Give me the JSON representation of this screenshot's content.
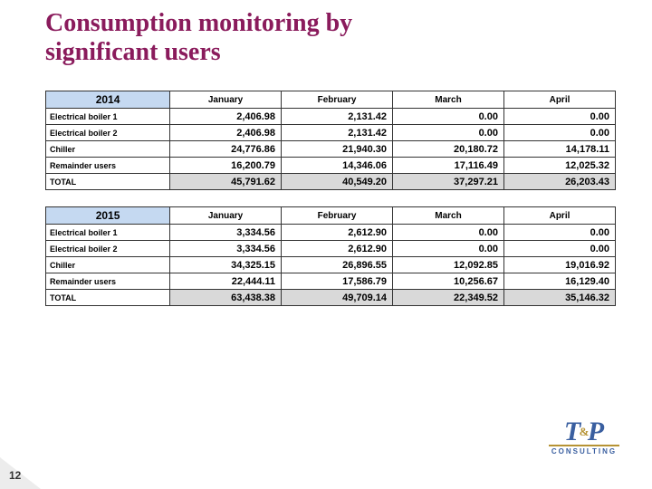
{
  "title_line1": "Consumption monitoring by",
  "title_line2": "significant users",
  "page_number": "12",
  "logo": {
    "letters": "T P",
    "amp": "&",
    "sub": "CONSULTING"
  },
  "tables": [
    {
      "year": "2014",
      "months": [
        "January",
        "February",
        "March",
        "April"
      ],
      "rows": [
        {
          "label": "Electrical boiler 1",
          "vals": [
            "2,406.98",
            "2,131.42",
            "0.00",
            "0.00"
          ]
        },
        {
          "label": "Electrical boiler 2",
          "vals": [
            "2,406.98",
            "2,131.42",
            "0.00",
            "0.00"
          ]
        },
        {
          "label": "Chiller",
          "vals": [
            "24,776.86",
            "21,940.30",
            "20,180.72",
            "14,178.11"
          ]
        },
        {
          "label": "Remainder users",
          "vals": [
            "16,200.79",
            "14,346.06",
            "17,116.49",
            "12,025.32"
          ]
        }
      ],
      "total": {
        "label": "TOTAL",
        "vals": [
          "45,791.62",
          "40,549.20",
          "37,297.21",
          "26,203.43"
        ]
      }
    },
    {
      "year": "2015",
      "months": [
        "January",
        "February",
        "March",
        "April"
      ],
      "rows": [
        {
          "label": "Electrical boiler 1",
          "vals": [
            "3,334.56",
            "2,612.90",
            "0.00",
            "0.00"
          ]
        },
        {
          "label": "Electrical boiler 2",
          "vals": [
            "3,334.56",
            "2,612.90",
            "0.00",
            "0.00"
          ]
        },
        {
          "label": "Chiller",
          "vals": [
            "34,325.15",
            "26,896.55",
            "12,092.85",
            "19,016.92"
          ]
        },
        {
          "label": "Remainder users",
          "vals": [
            "22,444.11",
            "17,586.79",
            "10,256.67",
            "16,129.40"
          ]
        }
      ],
      "total": {
        "label": "TOTAL",
        "vals": [
          "63,438.38",
          "49,709.14",
          "22,349.52",
          "35,146.32"
        ]
      }
    }
  ],
  "colors": {
    "title": "#8a1b5c",
    "header_bg": "#c5d9f1",
    "total_bg": "#d9d9d9",
    "border": "#333333",
    "logo_blue": "#3a5fa0",
    "logo_gold": "#b69334"
  }
}
